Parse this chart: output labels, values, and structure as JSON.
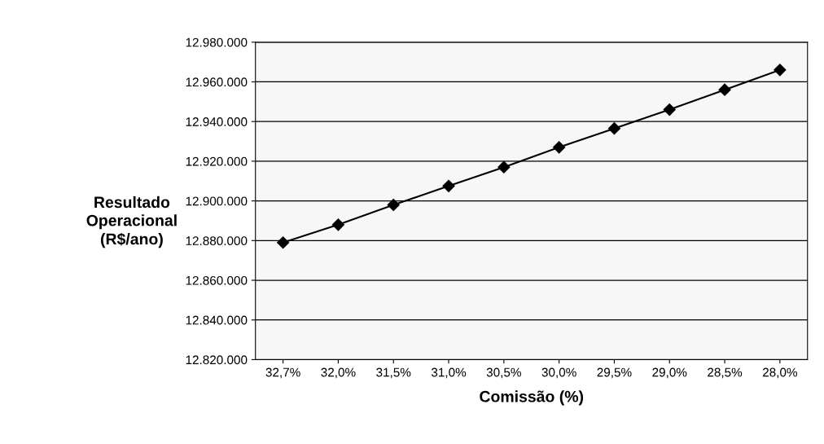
{
  "chart_data": {
    "type": "line",
    "xlabel": "Comissão (%)",
    "ylabel": "Resultado\nOperacional\n(R$/ano)",
    "categories": [
      "32,7%",
      "32,0%",
      "31,5%",
      "31,0%",
      "30,5%",
      "30,0%",
      "29,5%",
      "29,0%",
      "28,5%",
      "28,0%"
    ],
    "series": [
      {
        "color": "#000000",
        "values": [
          12879000,
          12888000,
          12898000,
          12907500,
          12917000,
          12927000,
          12936500,
          12946000,
          12956000,
          12966000
        ]
      }
    ],
    "ylim": [
      12820000,
      12980000
    ],
    "yticks": [
      {
        "value": 12820000,
        "label": "12.820.000"
      },
      {
        "value": 12840000,
        "label": "12.840.000"
      },
      {
        "value": 12860000,
        "label": "12.860.000"
      },
      {
        "value": 12880000,
        "label": "12.880.000"
      },
      {
        "value": 12900000,
        "label": "12.900.000"
      },
      {
        "value": 12920000,
        "label": "12.920.000"
      },
      {
        "value": 12940000,
        "label": "12.940.000"
      },
      {
        "value": 12960000,
        "label": "12.960.000"
      },
      {
        "value": 12980000,
        "label": "12.980.000"
      }
    ],
    "grid": "y",
    "marker": "diamond",
    "line_style": "solid",
    "legend": false
  }
}
